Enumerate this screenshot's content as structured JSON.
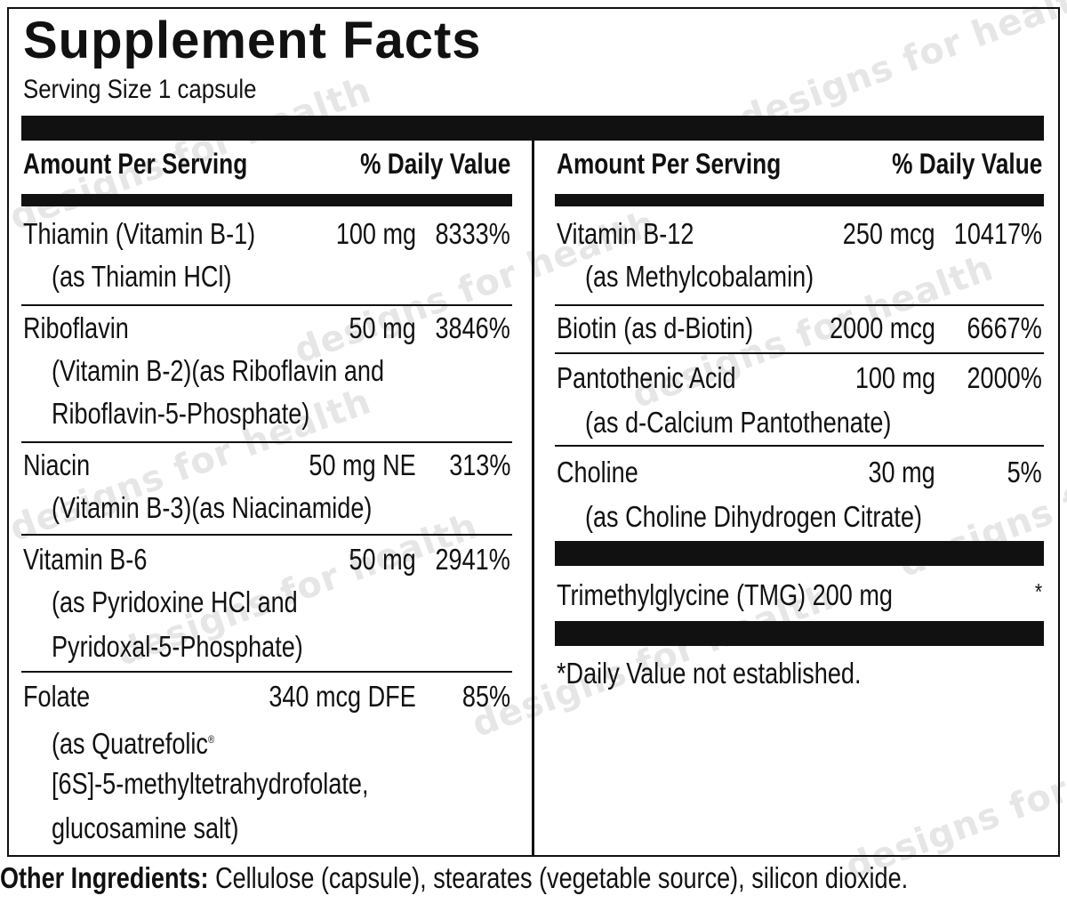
{
  "title": "Supplement Facts",
  "serving_size": "Serving Size 1 capsule",
  "headers": {
    "amount": "Amount Per Serving",
    "dv": "% Daily Value"
  },
  "left": [
    {
      "name": "Thiamin (Vitamin B-1)",
      "sub": [
        "(as Thiamin HCl)"
      ],
      "amount": "100 mg",
      "dv": "8333%"
    },
    {
      "name": "Riboflavin",
      "sub": [
        "(Vitamin B-2)(as Riboflavin and",
        "Riboflavin-5-Phosphate)"
      ],
      "amount": "50 mg",
      "dv": "3846%"
    },
    {
      "name": "Niacin",
      "sub": [
        "(Vitamin B-3)(as Niacinamide)"
      ],
      "amount": "50 mg NE",
      "dv": "313%"
    },
    {
      "name": "Vitamin B-6",
      "sub": [
        "(as Pyridoxine HCl and",
        "Pyridoxal-5-Phosphate)"
      ],
      "amount": "50 mg",
      "dv": "2941%"
    },
    {
      "name": "Folate",
      "sub": [
        "(as Quatrefolic",
        "[6S]-5-methyltetrahydrofolate,",
        "glucosamine salt)"
      ],
      "amount": "340 mcg DFE",
      "dv": "85%"
    }
  ],
  "right": [
    {
      "name": "Vitamin B-12",
      "sub": [
        "(as Methylcobalamin)"
      ],
      "amount": "250 mcg",
      "dv": "10417%"
    },
    {
      "name": "Biotin (as d-Biotin)",
      "sub": [],
      "amount": "2000 mcg",
      "dv": "6667%"
    },
    {
      "name": "Pantothenic Acid",
      "sub": [
        "(as d-Calcium Pantothenate)"
      ],
      "amount": "100 mg",
      "dv": "2000%"
    },
    {
      "name": "Choline",
      "sub": [
        "(as Choline Dihydrogen Citrate)"
      ],
      "amount": "30 mg",
      "dv": "5%"
    }
  ],
  "tmg": {
    "name": "Trimethylglycine (TMG) 200 mg",
    "dv": "*"
  },
  "footnote": "*Daily Value not established.",
  "other_ingredients": {
    "label": "Other Ingredients:",
    "text": " Cellulose (capsule), stearates (vegetable source), silicon dioxide."
  },
  "watermark": "designs for health"
}
